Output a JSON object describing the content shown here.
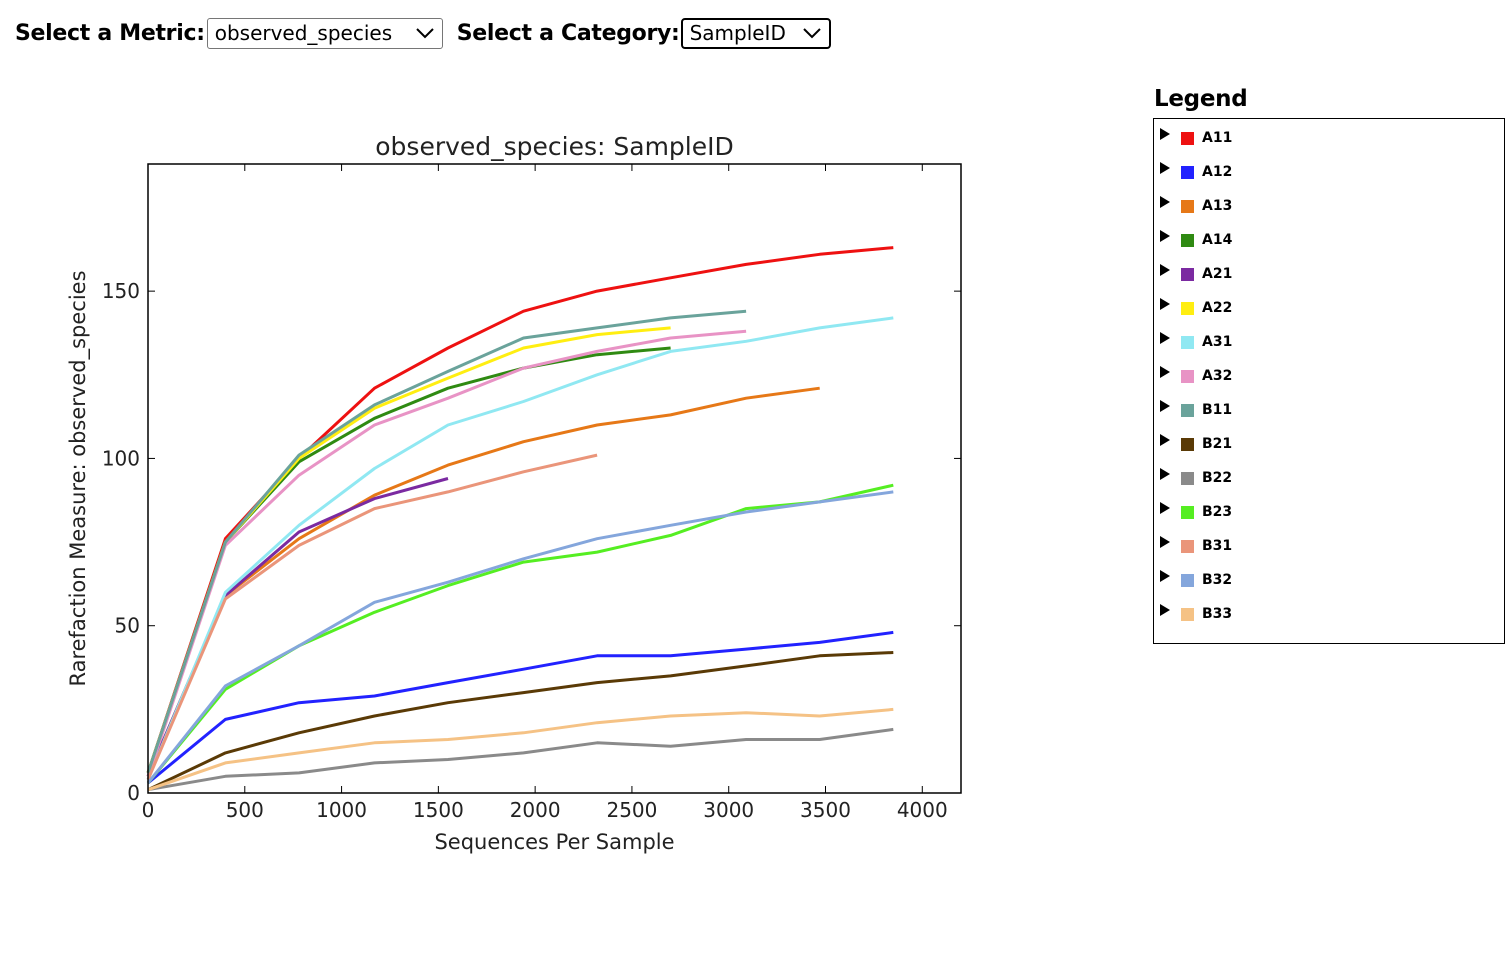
{
  "controls": {
    "metric_label": "Select a Metric:",
    "metric_value": "observed_species",
    "category_label": "Select a Category:",
    "category_value": "SampleID"
  },
  "legend": {
    "title": "Legend",
    "icons": {
      "expander": "expand-triangle-icon"
    }
  },
  "chart_data": {
    "type": "line",
    "title": "observed_species: SampleID",
    "xlabel": "Sequences Per Sample",
    "ylabel": "Rarefaction Measure: observed_species",
    "xlim": [
      0,
      4200
    ],
    "ylim": [
      0,
      188
    ],
    "xticks": [
      0,
      500,
      1000,
      1500,
      2000,
      2500,
      3000,
      3500,
      4000
    ],
    "yticks": [
      0,
      50,
      100,
      150
    ],
    "grid": false,
    "legend_position": "right",
    "series": [
      {
        "name": "A11",
        "color": "#ee1111",
        "x": [
          0,
          400,
          780,
          1170,
          1550,
          1940,
          2320,
          2700,
          3090,
          3470,
          3850
        ],
        "y": [
          6,
          76,
          100,
          121,
          133,
          144,
          150,
          154,
          158,
          161,
          163
        ]
      },
      {
        "name": "A12",
        "color": "#2222ff",
        "x": [
          0,
          400,
          780,
          1170,
          1550,
          1940,
          2320,
          2700,
          3090,
          3470,
          3850
        ],
        "y": [
          3,
          22,
          27,
          29,
          33,
          37,
          41,
          41,
          43,
          45,
          48
        ]
      },
      {
        "name": "A13",
        "color": "#e67817",
        "x": [
          0,
          400,
          780,
          1170,
          1550,
          1940,
          2320,
          2700,
          3090,
          3470
        ],
        "y": [
          5,
          59,
          76,
          89,
          98,
          105,
          110,
          113,
          118,
          121
        ]
      },
      {
        "name": "A14",
        "color": "#2f8a12",
        "x": [
          0,
          400,
          780,
          1170,
          1550,
          1940,
          2320,
          2700
        ],
        "y": [
          6,
          75,
          99,
          112,
          121,
          127,
          131,
          133
        ]
      },
      {
        "name": "A21",
        "color": "#7b2aa1",
        "x": [
          0,
          400,
          780,
          1170,
          1550
        ],
        "y": [
          5,
          59,
          78,
          88,
          94
        ]
      },
      {
        "name": "A22",
        "color": "#ffee11",
        "x": [
          0,
          400,
          780,
          1170,
          1550,
          1940,
          2320,
          2700
        ],
        "y": [
          6,
          75,
          100,
          115,
          124,
          133,
          137,
          139
        ]
      },
      {
        "name": "A31",
        "color": "#90e8f2",
        "x": [
          0,
          400,
          780,
          1170,
          1550,
          1940,
          2320,
          2700,
          3090,
          3470,
          3850
        ],
        "y": [
          4,
          60,
          80,
          97,
          110,
          117,
          125,
          132,
          135,
          139,
          142
        ]
      },
      {
        "name": "A32",
        "color": "#e893c5",
        "x": [
          0,
          400,
          780,
          1170,
          1550,
          1940,
          2320,
          2700,
          3090
        ],
        "y": [
          5,
          74,
          95,
          110,
          118,
          127,
          132,
          136,
          138
        ]
      },
      {
        "name": "B11",
        "color": "#6aa39b",
        "x": [
          0,
          400,
          780,
          1170,
          1550,
          1940,
          2320,
          2700,
          3090
        ],
        "y": [
          6,
          75,
          101,
          116,
          126,
          136,
          139,
          142,
          144
        ]
      },
      {
        "name": "B21",
        "color": "#5a3a06",
        "x": [
          0,
          400,
          780,
          1170,
          1550,
          1940,
          2320,
          2700,
          3090,
          3470,
          3850
        ],
        "y": [
          1,
          12,
          18,
          23,
          27,
          30,
          33,
          35,
          38,
          41,
          42
        ]
      },
      {
        "name": "B22",
        "color": "#8a8a8a",
        "x": [
          0,
          400,
          780,
          1170,
          1550,
          1940,
          2320,
          2700,
          3090,
          3470,
          3850
        ],
        "y": [
          1,
          5,
          6,
          9,
          10,
          12,
          15,
          14,
          16,
          16,
          19
        ]
      },
      {
        "name": "B23",
        "color": "#55ee22",
        "x": [
          0,
          400,
          780,
          1170,
          1550,
          1940,
          2320,
          2700,
          3090,
          3470,
          3850
        ],
        "y": [
          3,
          31,
          44,
          54,
          62,
          69,
          72,
          77,
          85,
          87,
          92
        ]
      },
      {
        "name": "B31",
        "color": "#ea957a",
        "x": [
          0,
          400,
          780,
          1170,
          1550,
          1940,
          2320
        ],
        "y": [
          4,
          58,
          74,
          85,
          90,
          96,
          101
        ]
      },
      {
        "name": "B32",
        "color": "#84a6dc",
        "x": [
          0,
          400,
          780,
          1170,
          1550,
          1940,
          2320,
          2700,
          3090,
          3470,
          3850
        ],
        "y": [
          3,
          32,
          44,
          57,
          63,
          70,
          76,
          80,
          84,
          87,
          90
        ]
      },
      {
        "name": "B33",
        "color": "#f5c285",
        "x": [
          0,
          400,
          780,
          1170,
          1550,
          1940,
          2320,
          2700,
          3090,
          3470,
          3850
        ],
        "y": [
          1,
          9,
          12,
          15,
          16,
          18,
          21,
          23,
          24,
          23,
          25
        ]
      }
    ]
  }
}
